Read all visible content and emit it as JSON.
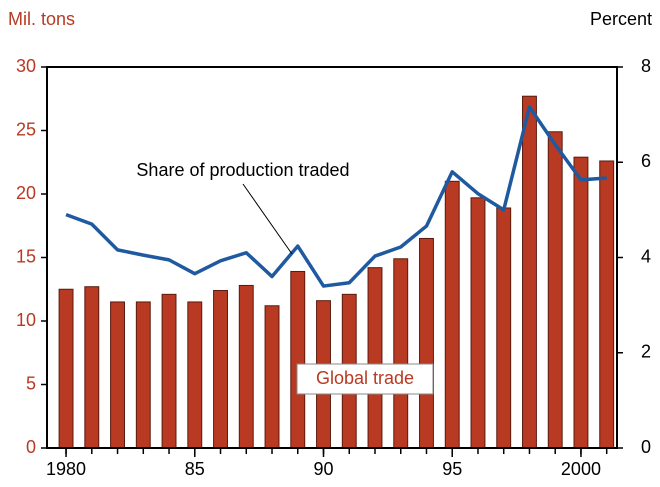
{
  "chart_data": {
    "type": "bar-line",
    "y_label": "Mil. tons",
    "y2_label": "Percent",
    "x": [
      1980,
      1981,
      1982,
      1983,
      1984,
      1985,
      1986,
      1987,
      1988,
      1989,
      1990,
      1991,
      1992,
      1993,
      1994,
      1995,
      1996,
      1997,
      1998,
      1999,
      2000,
      2001
    ],
    "xlim": [
      1979.26,
      2001.4
    ],
    "xticks": [
      {
        "value": 1980,
        "label": "1980"
      },
      {
        "value": 1985,
        "label": "85"
      },
      {
        "value": 1990,
        "label": "90"
      },
      {
        "value": 1995,
        "label": "95"
      },
      {
        "value": 2000,
        "label": "2000"
      }
    ],
    "ylim": [
      0,
      30
    ],
    "yticks": [
      0,
      5,
      10,
      15,
      20,
      25,
      30
    ],
    "y2lim": [
      0,
      8
    ],
    "y2ticks": [
      0,
      2,
      4,
      6,
      8
    ],
    "series": [
      {
        "name": "Global trade",
        "type": "bar",
        "color": "#b83a22",
        "values": [
          12.5,
          12.7,
          11.5,
          11.5,
          12.1,
          11.5,
          12.4,
          12.8,
          11.2,
          13.9,
          11.6,
          12.1,
          14.2,
          14.9,
          16.5,
          21.0,
          19.7,
          18.9,
          27.7,
          24.9,
          22.9,
          22.6
        ]
      },
      {
        "name": "Share of production traded",
        "type": "line",
        "axis": "y2",
        "color": "#1f5aa0",
        "values": [
          4.9,
          4.7,
          4.16,
          4.05,
          3.95,
          3.66,
          3.93,
          4.1,
          3.6,
          4.24,
          3.4,
          3.47,
          4.03,
          4.22,
          4.66,
          5.8,
          5.34,
          5.0,
          7.16,
          6.37,
          5.63,
          5.67
        ]
      }
    ]
  }
}
